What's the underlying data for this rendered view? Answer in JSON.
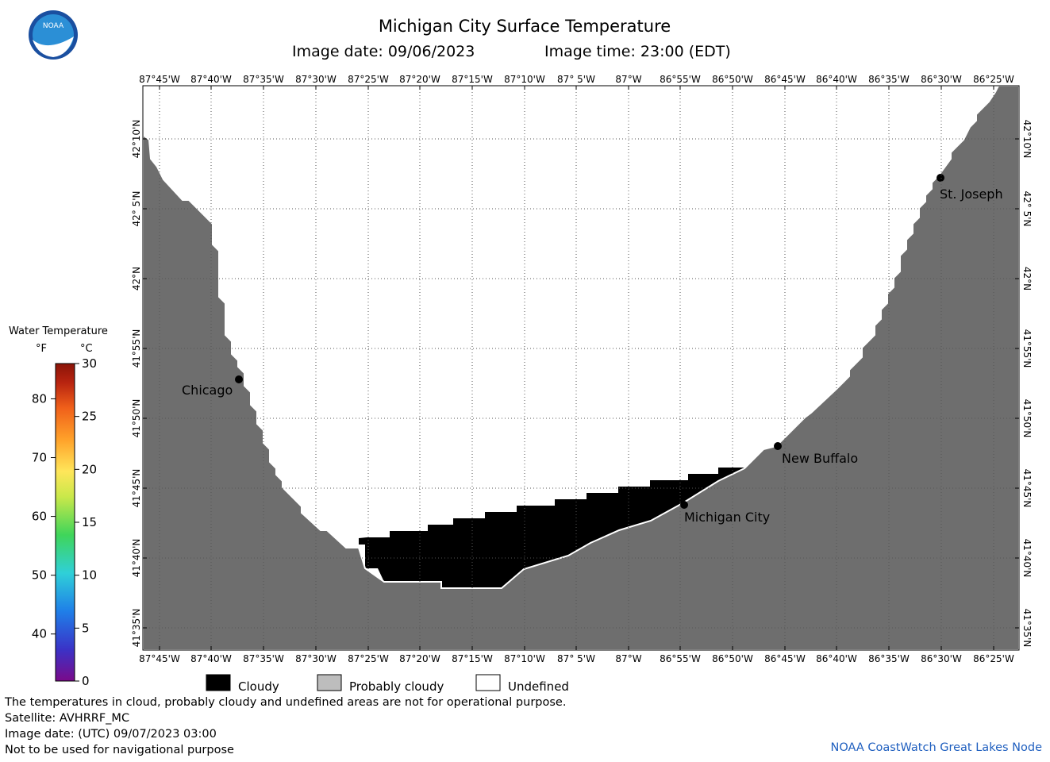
{
  "header": {
    "title": "Michigan City Surface Temperature",
    "image_date_label": "Image date: 09/06/2023",
    "image_time_label": "Image time: 23:00 (EDT)",
    "logo_text": "NOAA"
  },
  "axes": {
    "lon_labels": [
      "87°45'W",
      "87°40'W",
      "87°35'W",
      "87°30'W",
      "87°25'W",
      "87°20'W",
      "87°15'W",
      "87°10'W",
      "87° 5'W",
      "87°W",
      "86°55'W",
      "86°50'W",
      "86°45'W",
      "86°40'W",
      "86°35'W",
      "86°30'W",
      "86°25'W"
    ],
    "lat_labels": [
      "42°10'N",
      "42° 5'N",
      "42°N",
      "41°55'N",
      "41°50'N",
      "41°45'N",
      "41°40'N",
      "41°35'N"
    ]
  },
  "places": [
    {
      "name": "Chicago"
    },
    {
      "name": "New Buffalo"
    },
    {
      "name": "Michigan City"
    },
    {
      "name": "St. Joseph"
    }
  ],
  "color_scale": {
    "title": "Water Temperature",
    "unit_f": "°F",
    "unit_c": "°C",
    "f_ticks": [
      "40",
      "50",
      "60",
      "70",
      "80"
    ],
    "c_ticks": [
      "0",
      "5",
      "10",
      "15",
      "20",
      "25",
      "30"
    ],
    "colors": [
      "#7a0a8a",
      "#3a33c7",
      "#1f7fe8",
      "#2fd0d8",
      "#3fd55a",
      "#c9e84a",
      "#ffe65a",
      "#ffa22a",
      "#f0601a",
      "#b82410",
      "#8a1408"
    ]
  },
  "legend": [
    {
      "label": "Cloudy",
      "color": "#000000"
    },
    {
      "label": "Probably cloudy",
      "color": "#bdbdbd"
    },
    {
      "label": "Undefined",
      "color": "#ffffff"
    }
  ],
  "footer": {
    "line1": "The temperatures in cloud, probably cloudy and undefined areas are not for operational purpose.",
    "line2": "Satellite: AVHRRF_MC",
    "line3": "Image date: (UTC) 09/07/2023  03:00",
    "line4": "Not to be used for navigational purpose",
    "credit": "NOAA CoastWatch Great Lakes Node"
  },
  "colors": {
    "land": "#6e6e6e",
    "cloud": "#000000",
    "water": "#ffffff",
    "grid": "#555555",
    "credit": "#1f5fbf"
  }
}
